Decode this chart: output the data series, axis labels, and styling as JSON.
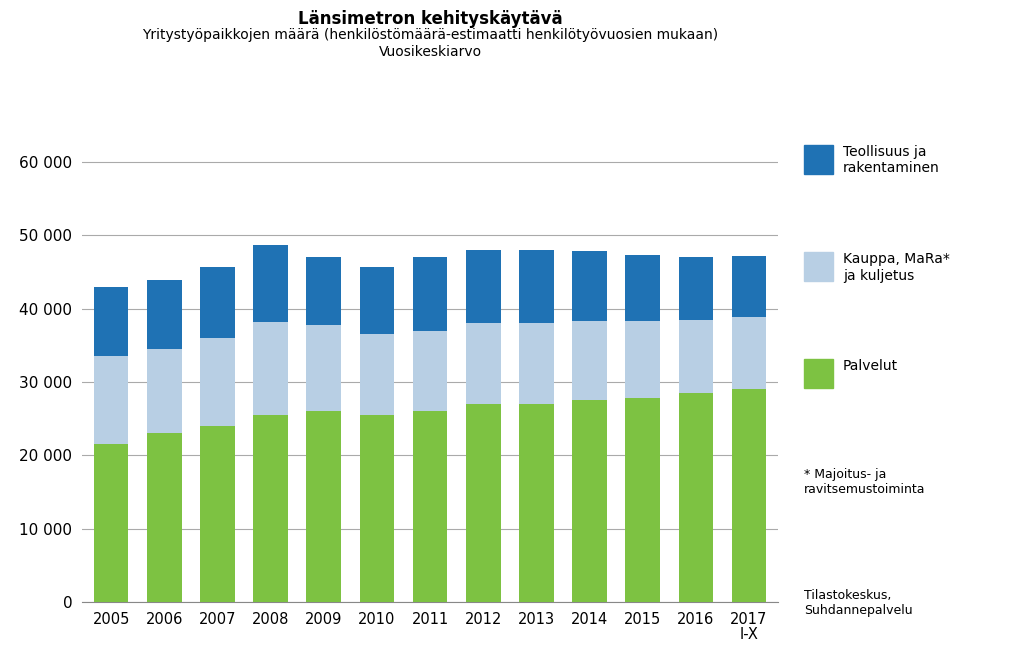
{
  "years": [
    "2005",
    "2006",
    "2007",
    "2008",
    "2009",
    "2010",
    "2011",
    "2012",
    "2013",
    "2014",
    "2015",
    "2016",
    "2017\nI-X"
  ],
  "palvelut": [
    21500,
    23000,
    24000,
    25500,
    26000,
    25500,
    26000,
    27000,
    27000,
    27500,
    27800,
    28500,
    29000
  ],
  "kauppa": [
    12000,
    11500,
    12000,
    12700,
    11700,
    11000,
    11000,
    11000,
    11000,
    10800,
    10500,
    10000,
    9800
  ],
  "teollisuus": [
    9500,
    9400,
    9700,
    10500,
    9300,
    9200,
    10000,
    10000,
    10000,
    9600,
    9000,
    8500,
    8400
  ],
  "color_palvelut": "#7dc242",
  "color_kauppa": "#b8cfe4",
  "color_teollisuus": "#1f72b4",
  "title_line1": "Länsimetron kehityskäytävä",
  "title_line2": "Yritystyöpaikkojen määrä (henkilöstömäärä-estimaatti henkilötyövuosien mukaan)",
  "title_line3": "Vuosikeskiarvo",
  "legend_1": "Teollisuus ja\nrakentaminen",
  "legend_2": "Kauppa, MaRa*\nja kuljetus",
  "legend_3": "Palvelut",
  "footnote1": "* Majoitus- ja\nravitsemustoiminta",
  "footnote2": "Tilastokeskus,\nSuhdannepalvelu",
  "ylim": [
    0,
    62000
  ],
  "yticks": [
    0,
    10000,
    20000,
    30000,
    40000,
    50000,
    60000
  ],
  "ytick_labels": [
    "0",
    "10 000",
    "20 000",
    "30 000",
    "40 000",
    "50 000",
    "60 000"
  ],
  "background_color": "#ffffff",
  "grid_color": "#aaaaaa"
}
